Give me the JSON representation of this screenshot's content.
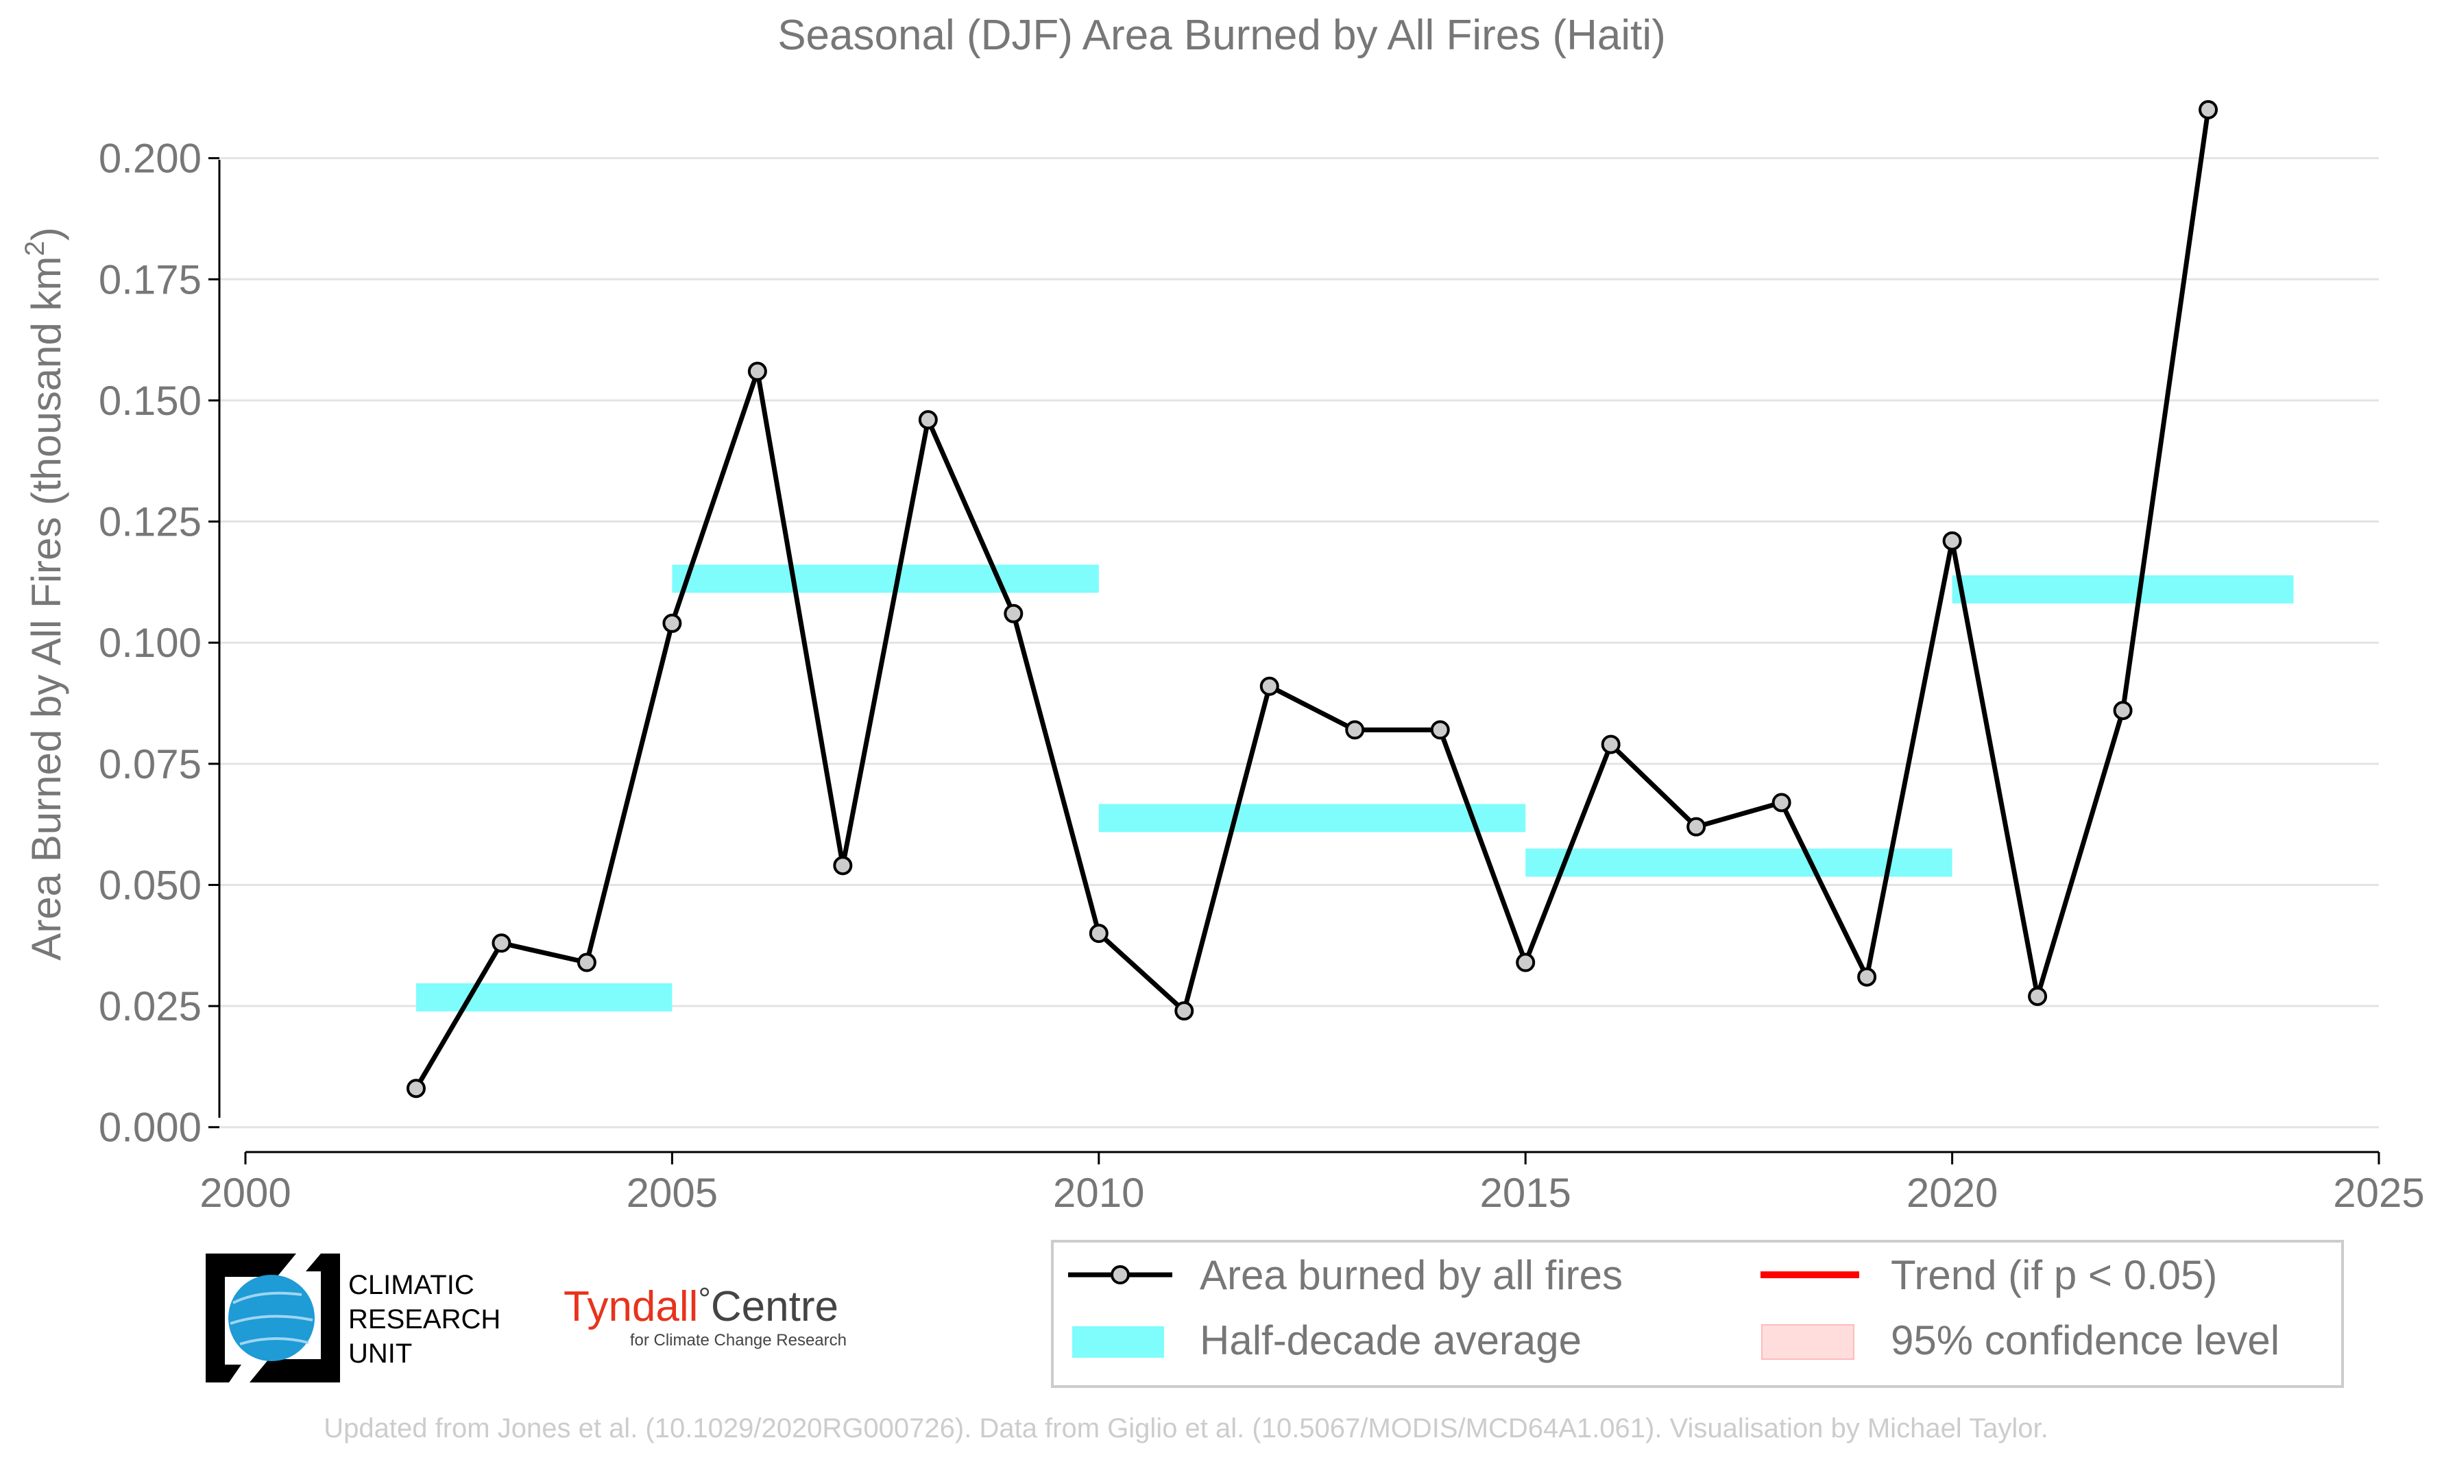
{
  "chart_data": {
    "type": "line",
    "title": "Seasonal (DJF) Area Burned by All Fires (Haiti)",
    "ylabel": "Area Burned by All Fires (thousand km",
    "ylabel_superscript": "2",
    "ylabel_close": ")",
    "xlim": [
      2000,
      2025
    ],
    "ylim": [
      -0.004,
      0.21
    ],
    "x_ticks": [
      2000,
      2005,
      2010,
      2015,
      2020,
      2025
    ],
    "x_tick_labels": [
      "2000",
      "2005",
      "2010",
      "2015",
      "2020",
      "2025"
    ],
    "y_ticks": [
      0.0,
      0.025,
      0.05,
      0.075,
      0.1,
      0.125,
      0.15,
      0.175,
      0.2
    ],
    "y_tick_labels": [
      "0.000",
      "0.025",
      "0.050",
      "0.075",
      "0.100",
      "0.125",
      "0.150",
      "0.175",
      "0.200"
    ],
    "grid": "horizontal",
    "series": [
      {
        "name": "Area burned by all fires",
        "color": "#000000",
        "marker_fill": "#cccccc",
        "x": [
          2002,
          2003,
          2004,
          2005,
          2006,
          2007,
          2008,
          2009,
          2010,
          2011,
          2012,
          2013,
          2014,
          2015,
          2016,
          2017,
          2018,
          2019,
          2020,
          2021,
          2022,
          2023
        ],
        "y": [
          0.008,
          0.038,
          0.034,
          0.104,
          0.156,
          0.054,
          0.146,
          0.106,
          0.04,
          0.024,
          0.091,
          0.082,
          0.082,
          0.034,
          0.079,
          0.062,
          0.067,
          0.031,
          0.121,
          0.027,
          0.086,
          0.21
        ]
      }
    ],
    "half_decade_average": {
      "name": "Half-decade average",
      "color": "#7ffcfc",
      "segments": [
        {
          "x0": 2002,
          "x1": 2005,
          "y": 0.0268
        },
        {
          "x0": 2005,
          "x1": 2010,
          "y": 0.1132
        },
        {
          "x0": 2010,
          "x1": 2015,
          "y": 0.0638
        },
        {
          "x0": 2015,
          "x1": 2020,
          "y": 0.0546
        },
        {
          "x0": 2020,
          "x1": 2024,
          "y": 0.111
        }
      ]
    },
    "legend": {
      "placement": "bottom-right",
      "entries": [
        {
          "key": "line",
          "label": "Area burned by all fires"
        },
        {
          "key": "trend",
          "label": "Trend (if p < 0.05)",
          "color": "#ff0000"
        },
        {
          "key": "avg",
          "label": "Half-decade average"
        },
        {
          "key": "ci",
          "label": "95% confidence level",
          "color": "#ffdddd"
        }
      ]
    },
    "credit": "Updated from Jones et al. (10.1029/2020RG000726). Data from Giglio et al. (10.5067/MODIS/MCD64A1.061). Visualisation by Michael Taylor."
  },
  "logos": {
    "cru": {
      "line1": "CLIMATIC",
      "line2": "RESEARCH",
      "line3": "UNIT",
      "globe_color": "#1f9bd6"
    },
    "tyndall": {
      "name_left": "Tyndall",
      "degree": "°",
      "name_right": "Centre",
      "tagline": "for Climate Change Research",
      "accent": "#e8331c"
    }
  }
}
